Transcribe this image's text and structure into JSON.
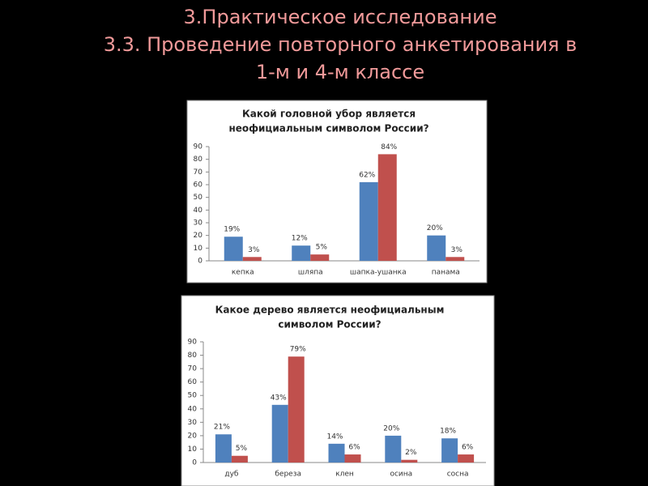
{
  "slide": {
    "title": [
      "3.Практическое исследование",
      "3.3. Проведение повторного анкетирования в",
      "1-м и 4-м классе"
    ]
  },
  "chart_data": [
    {
      "type": "bar",
      "title": [
        "Какой головной убор является",
        "неофициальным символом России?"
      ],
      "categories": [
        "кепка",
        "шляпа",
        "шапка-ушанка",
        "панама"
      ],
      "series": [
        {
          "color": "#4f81bd",
          "values": [
            19,
            12,
            62,
            20
          ],
          "value_labels": [
            "19%",
            "12%",
            "62%",
            "20%"
          ]
        },
        {
          "color": "#c0504d",
          "values": [
            3,
            5,
            84,
            3
          ],
          "value_labels": [
            "3%",
            "5%",
            "84%",
            "3%"
          ]
        }
      ],
      "ylim": [
        0,
        90
      ],
      "yticks": [
        0,
        10,
        20,
        30,
        40,
        50,
        60,
        70,
        80,
        90
      ],
      "grid": false
    },
    {
      "type": "bar",
      "title": [
        "Какое дерево является неофициальным",
        "символом России?"
      ],
      "categories": [
        "дуб",
        "береза",
        "клен",
        "осина",
        "сосна"
      ],
      "series": [
        {
          "color": "#4f81bd",
          "values": [
            21,
            43,
            14,
            20,
            18
          ],
          "value_labels": [
            "21%",
            "43%",
            "14%",
            "20%",
            "18%"
          ]
        },
        {
          "color": "#c0504d",
          "values": [
            5,
            79,
            6,
            2,
            6
          ],
          "value_labels": [
            "5%",
            "79%",
            "6%",
            "2%",
            "6%"
          ]
        }
      ],
      "ylim": [
        0,
        90
      ],
      "yticks": [
        0,
        10,
        20,
        30,
        40,
        50,
        60,
        70,
        80,
        90
      ],
      "grid": false
    }
  ]
}
